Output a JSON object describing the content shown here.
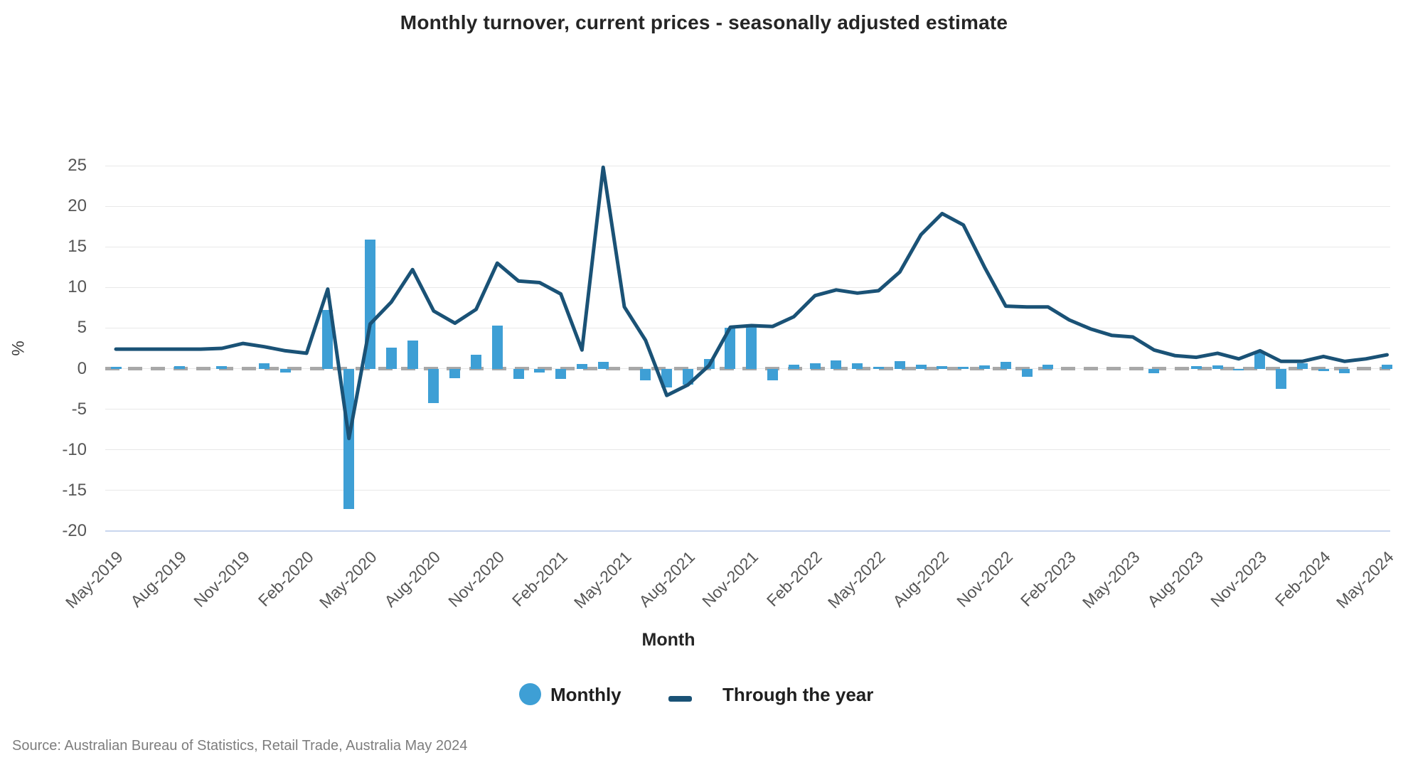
{
  "title": "Monthly turnover, current prices - seasonally adjusted estimate",
  "source": "Source: Australian Bureau of Statistics, Retail Trade, Australia May 2024",
  "legend": {
    "monthly_label": "Monthly",
    "through_the_year_label": "Through the year"
  },
  "chart_data": {
    "type": "bar+line combo",
    "title": "Monthly turnover, current prices - seasonally adjusted estimate",
    "xlabel": "Month",
    "ylabel": "%",
    "ylim": [
      -20,
      25
    ],
    "y_ticks": [
      25,
      20,
      15,
      10,
      5,
      0,
      -5,
      -10,
      -15,
      -20
    ],
    "grid": "horizontal",
    "legend_position": "bottom",
    "x": [
      "May-2019",
      "Jun-2019",
      "Jul-2019",
      "Aug-2019",
      "Sep-2019",
      "Oct-2019",
      "Nov-2019",
      "Dec-2019",
      "Jan-2020",
      "Feb-2020",
      "Mar-2020",
      "Apr-2020",
      "May-2020",
      "Jun-2020",
      "Jul-2020",
      "Aug-2020",
      "Sep-2020",
      "Oct-2020",
      "Nov-2020",
      "Dec-2020",
      "Jan-2021",
      "Feb-2021",
      "Mar-2021",
      "Apr-2021",
      "May-2021",
      "Jun-2021",
      "Jul-2021",
      "Aug-2021",
      "Sep-2021",
      "Oct-2021",
      "Nov-2021",
      "Dec-2021",
      "Jan-2022",
      "Feb-2022",
      "Mar-2022",
      "Apr-2022",
      "May-2022",
      "Jun-2022",
      "Jul-2022",
      "Aug-2022",
      "Sep-2022",
      "Oct-2022",
      "Nov-2022",
      "Dec-2022",
      "Jan-2023",
      "Feb-2023",
      "Mar-2023",
      "Apr-2023",
      "May-2023",
      "Jun-2023",
      "Jul-2023",
      "Aug-2023",
      "Sep-2023",
      "Oct-2023",
      "Nov-2023",
      "Dec-2023",
      "Jan-2024",
      "Feb-2024",
      "Mar-2024",
      "Apr-2024",
      "May-2024"
    ],
    "x_tick_labels": [
      "May-2019",
      "Aug-2019",
      "Nov-2019",
      "Feb-2020",
      "May-2020",
      "Aug-2020",
      "Nov-2020",
      "Feb-2021",
      "May-2021",
      "Aug-2021",
      "Nov-2021",
      "Feb-2022",
      "May-2022",
      "Aug-2022",
      "Nov-2022",
      "Feb-2023",
      "May-2023",
      "Aug-2023",
      "Nov-2023",
      "Feb-2024",
      "May-2024"
    ],
    "x_tick_every": 3,
    "series": [
      {
        "name": "Monthly",
        "type": "bar",
        "values": [
          0.2,
          0,
          0,
          0.3,
          0,
          0.3,
          0,
          0.7,
          -0.5,
          0,
          7.2,
          -17.3,
          15.9,
          2.6,
          3.5,
          -4.2,
          -1.2,
          1.7,
          5.3,
          -1.3,
          -0.5,
          -1.3,
          0.6,
          0.8,
          0,
          -1.4,
          -2.3,
          -2.0,
          1.2,
          5.0,
          5.1,
          -1.4,
          0.5,
          0.7,
          1.0,
          0.7,
          0.2,
          0.9,
          0.5,
          0.3,
          0.2,
          0.4,
          0.8,
          -1.0,
          0.5,
          0,
          0,
          0,
          0,
          -0.6,
          0,
          0.3,
          0.4,
          -0.2,
          2.0,
          -2.5,
          0.7,
          -0.3,
          -0.6,
          0,
          0.5
        ]
      },
      {
        "name": "Through the year",
        "type": "line",
        "values": [
          2.4,
          2.4,
          2.4,
          2.4,
          2.4,
          2.5,
          3.1,
          2.7,
          2.2,
          1.9,
          9.8,
          -8.6,
          5.5,
          8.2,
          12.2,
          7.1,
          5.6,
          7.3,
          13.0,
          10.8,
          10.6,
          9.2,
          2.3,
          24.8,
          7.6,
          3.5,
          -3.3,
          -2.0,
          0.4,
          5.1,
          5.3,
          5.2,
          6.4,
          9.0,
          9.7,
          9.3,
          9.6,
          11.9,
          16.5,
          19.1,
          17.7,
          12.5,
          7.7,
          7.6,
          7.6,
          6.0,
          4.9,
          4.1,
          3.9,
          2.3,
          1.6,
          1.4,
          1.9,
          1.2,
          2.2,
          0.9,
          0.9,
          1.5,
          0.9,
          1.2,
          1.7
        ]
      }
    ],
    "colors": {
      "monthly": "#3e9fd5",
      "through_the_year": "#1a5276",
      "zero_line": "#a8a8a8",
      "gridline": "#e8e8e8",
      "axis_floor": "#c9d6ee",
      "tick_text": "#565656",
      "text": "#252525",
      "source_text": "#7d7d7d"
    }
  }
}
